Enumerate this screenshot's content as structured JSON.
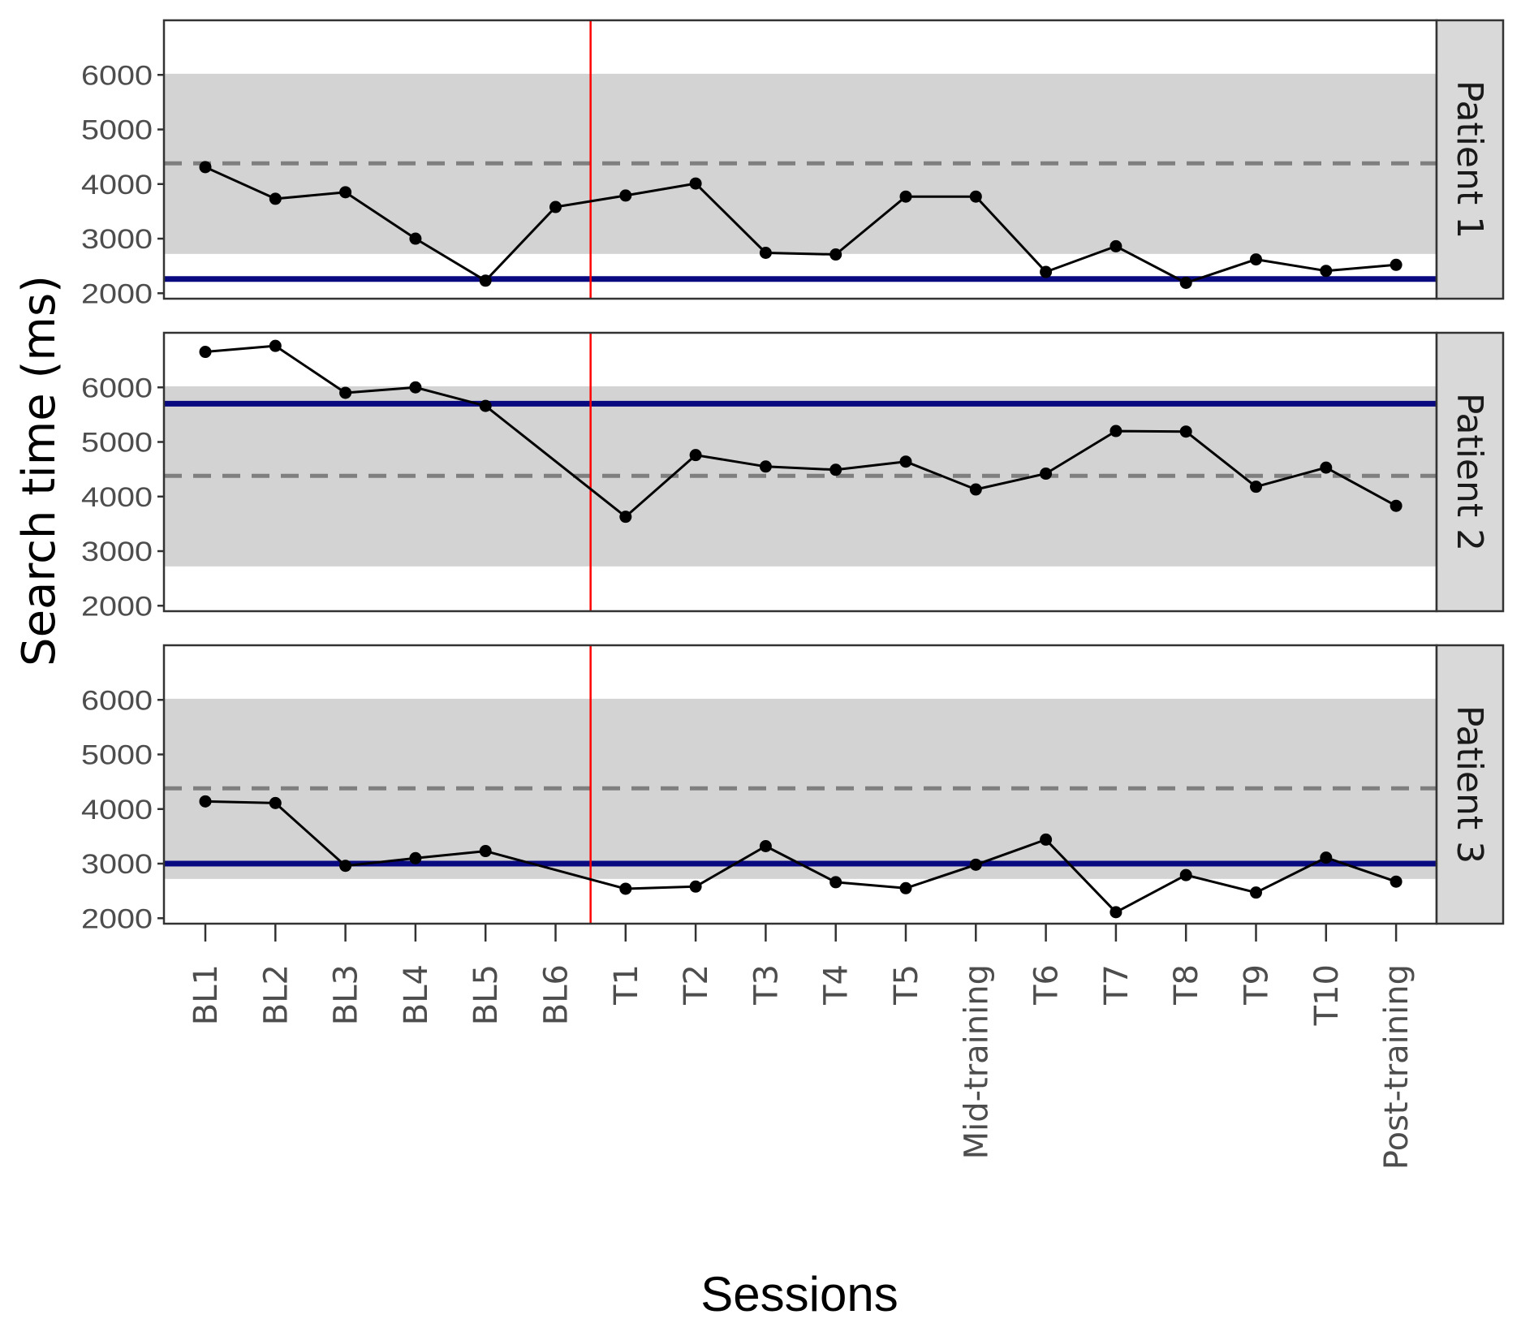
{
  "chart_data": {
    "type": "line",
    "ylabel": "Search time (ms)",
    "xlabel": "Sessions",
    "categories": [
      "BL1",
      "BL2",
      "BL3",
      "BL4",
      "BL5",
      "BL6",
      "T1",
      "T2",
      "T3",
      "T4",
      "T5",
      "Mid-training",
      "T6",
      "T7",
      "T8",
      "T9",
      "T10",
      "Post-training"
    ],
    "ylim": [
      1900,
      7000
    ],
    "yticks": [
      2000,
      3000,
      4000,
      5000,
      6000
    ],
    "normative_band": [
      2720,
      6020
    ],
    "normative_mean": 4380,
    "phase_change_between": [
      "BL6",
      "T1"
    ],
    "colors": {
      "series": "#000000",
      "band": "#d3d3d3",
      "mean_line": "#7f7f7f",
      "baseline_line": "#0a0a80",
      "phase_line": "#ff0000",
      "strip": "#d9d9d9"
    },
    "panels": [
      {
        "label": "Patient 1",
        "baseline_level": 2260,
        "values": [
          4310,
          3730,
          3850,
          3000,
          2230,
          3580,
          3790,
          4010,
          2740,
          2710,
          3770,
          3770,
          2390,
          2860,
          2190,
          2620,
          2410,
          2520
        ]
      },
      {
        "label": "Patient 2",
        "baseline_level": 5700,
        "values": [
          6650,
          6760,
          5900,
          6000,
          5660,
          null,
          3630,
          4760,
          4550,
          4490,
          4640,
          4130,
          4420,
          5200,
          5190,
          4180,
          4530,
          3830
        ]
      },
      {
        "label": "Patient 3",
        "baseline_level": 3000,
        "values": [
          4140,
          4110,
          2960,
          3100,
          3230,
          null,
          2540,
          2580,
          3320,
          2660,
          2550,
          2980,
          3440,
          2110,
          2790,
          2470,
          3110,
          2670
        ]
      }
    ]
  }
}
